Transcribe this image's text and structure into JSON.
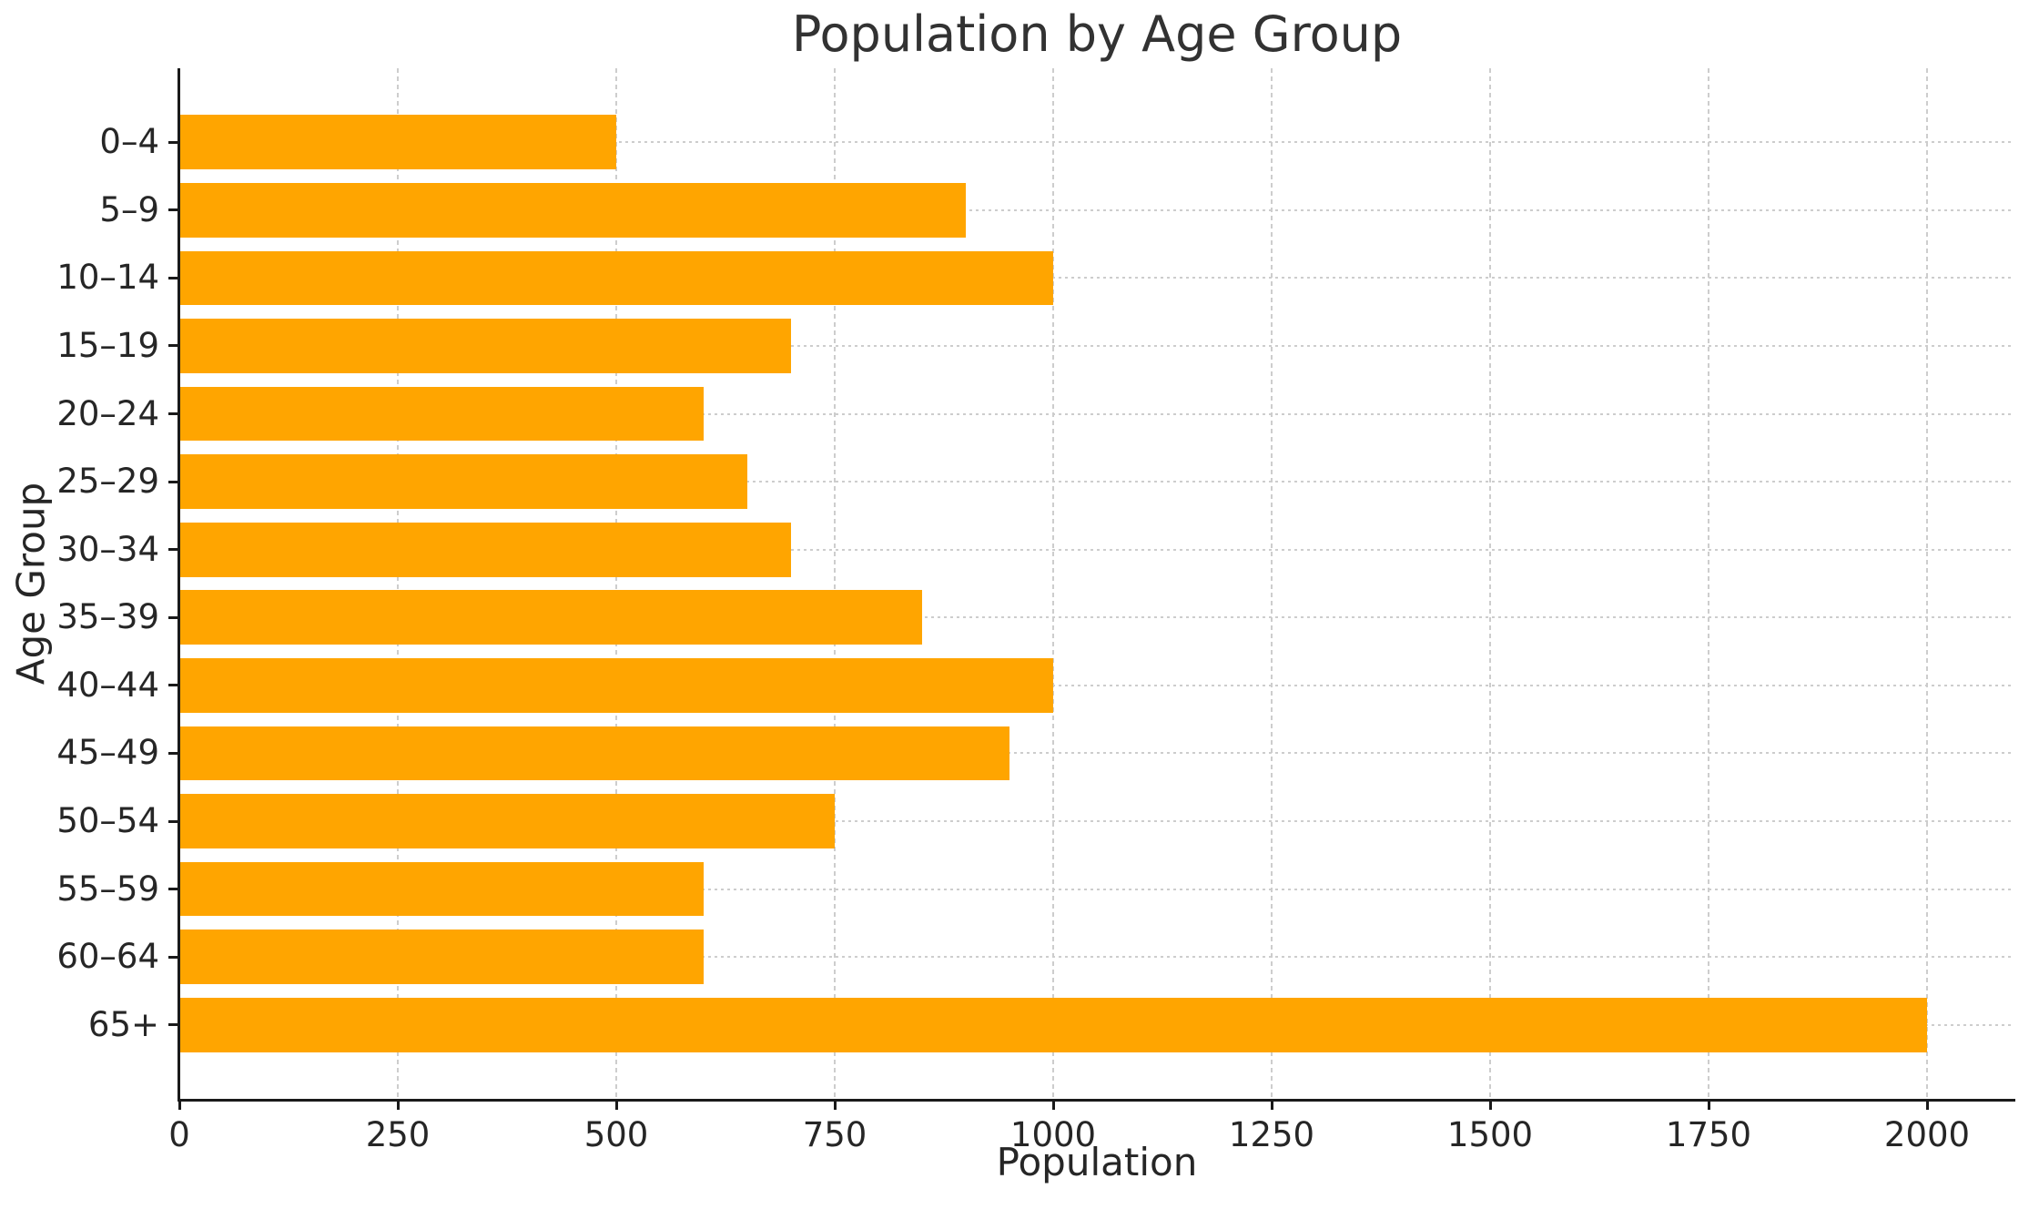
{
  "chart_data": {
    "type": "bar",
    "orientation": "horizontal",
    "title": "Population by Age Group",
    "xlabel": "Population",
    "ylabel": "Age Group",
    "categories": [
      "0–4",
      "5–9",
      "10–14",
      "15–19",
      "20–24",
      "25–29",
      "30–34",
      "35–39",
      "40–44",
      "45–49",
      "50–54",
      "55–59",
      "60–64",
      "65+"
    ],
    "values": [
      500,
      900,
      1000,
      700,
      600,
      650,
      700,
      850,
      1000,
      950,
      750,
      600,
      600,
      2000
    ],
    "xticks": [
      0,
      250,
      500,
      750,
      1000,
      1250,
      1500,
      1750,
      2000
    ],
    "xlim": [
      0,
      2100
    ],
    "grid": true,
    "legend": null,
    "colors": {
      "bar": "#FFA500",
      "grid": "#cdcdcd",
      "text": "#262626",
      "spine": "#1a1a1a",
      "background": "#ffffff"
    }
  }
}
